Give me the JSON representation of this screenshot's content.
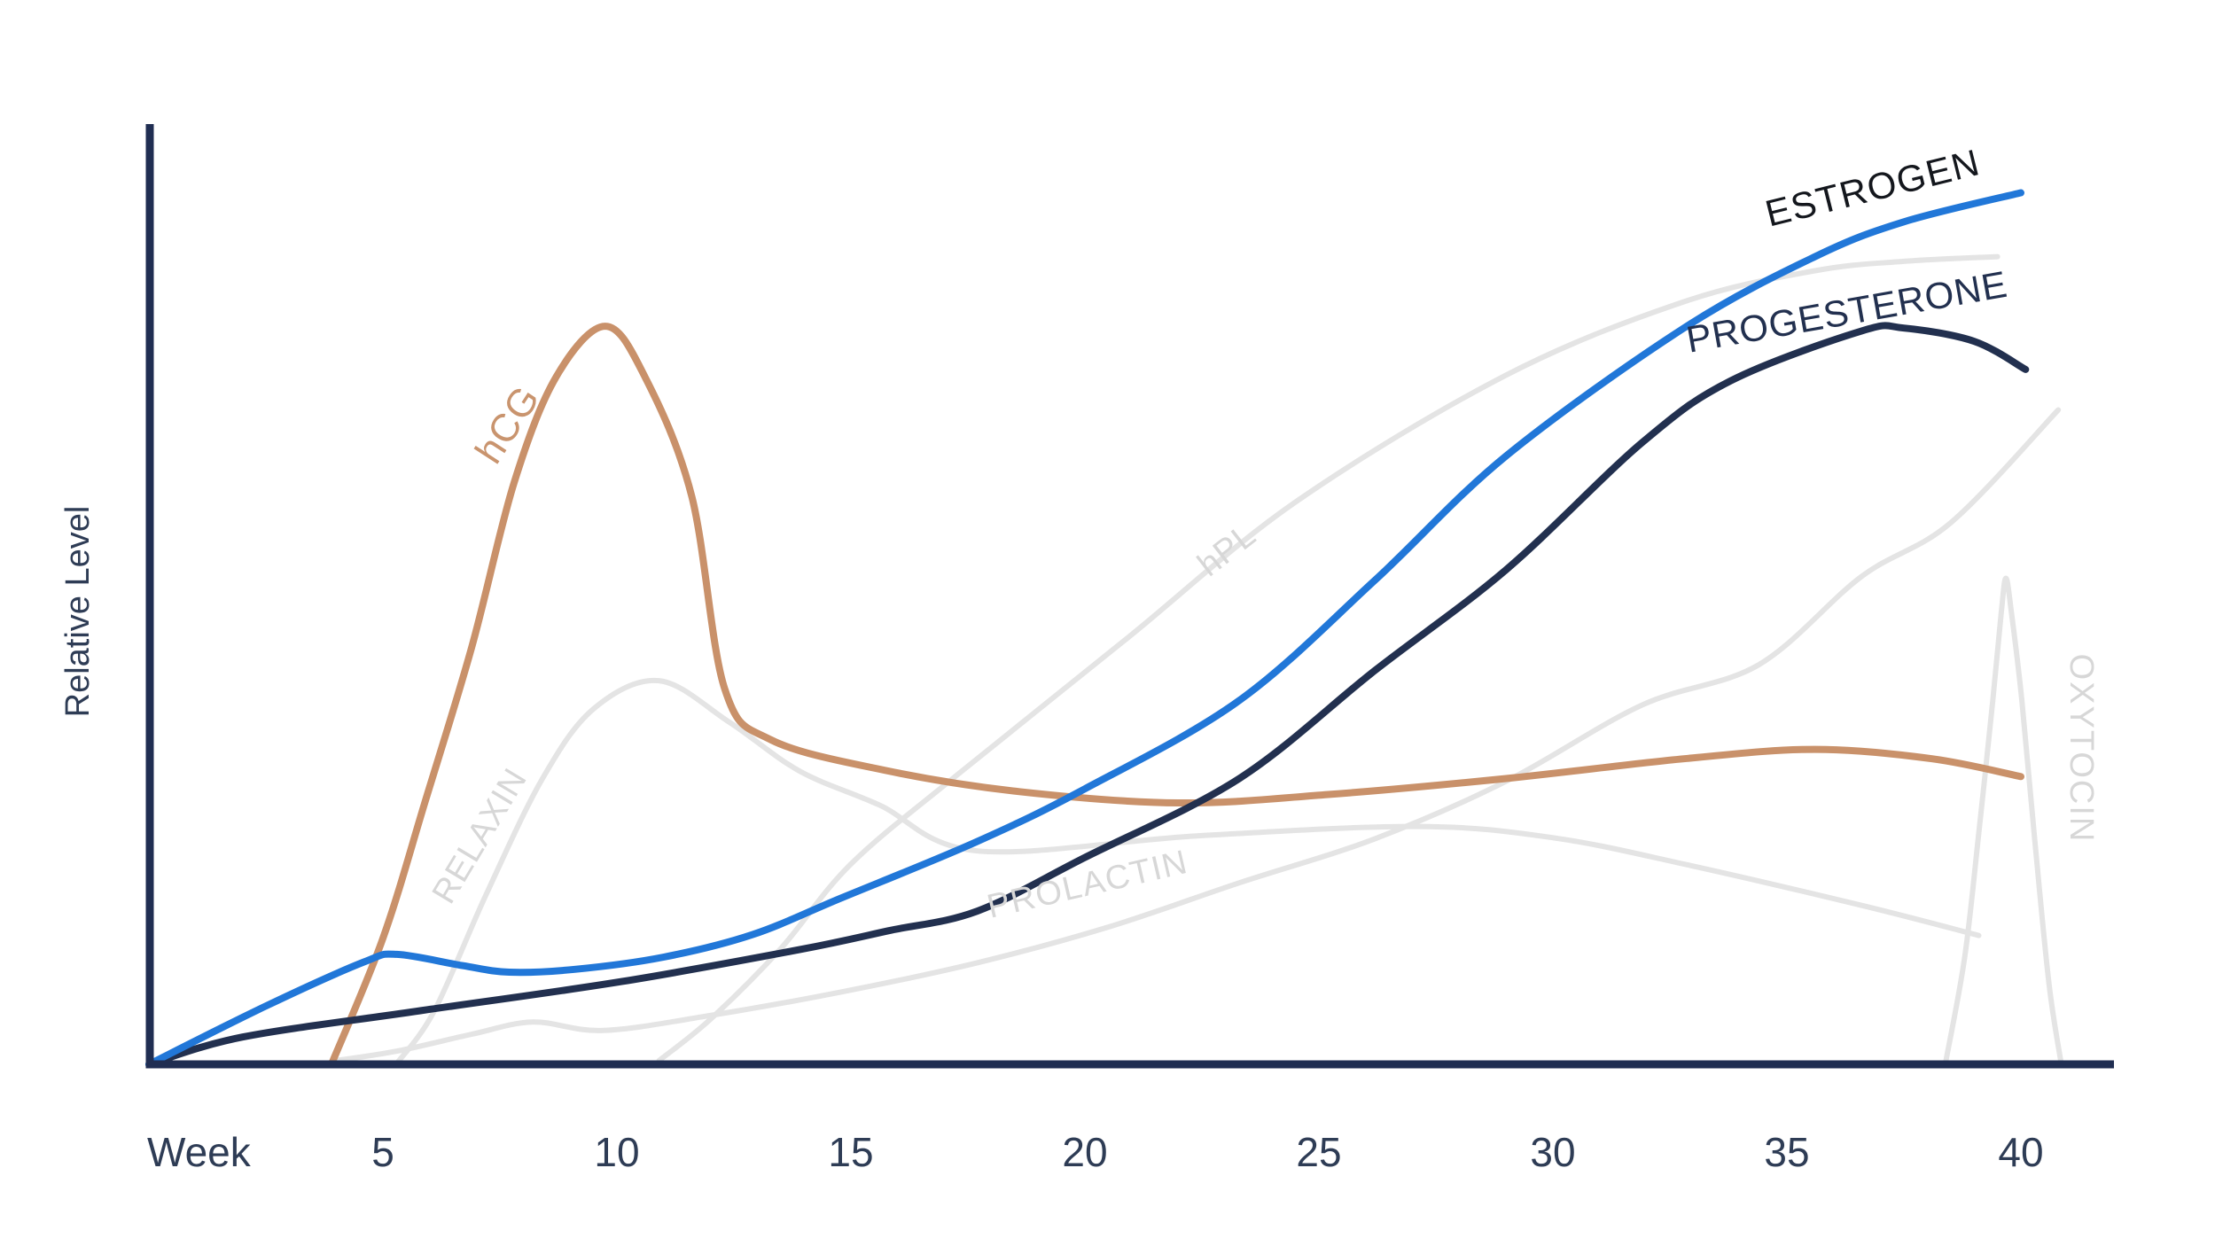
{
  "figure": {
    "background": "#ffffff",
    "axis_color": "#202e52",
    "text_color": "#2e3c55",
    "gray_curve_color": "#e4e4e4",
    "gray_label_color": "#d7d7d7"
  },
  "axes": {
    "y_label": "Relative Level",
    "x_label": "Week",
    "x_ticks": [
      {
        "week": 5,
        "label": "5"
      },
      {
        "week": 10,
        "label": "10"
      },
      {
        "week": 15,
        "label": "15"
      },
      {
        "week": 20,
        "label": "20"
      },
      {
        "week": 25,
        "label": "25"
      },
      {
        "week": 30,
        "label": "30"
      },
      {
        "week": 35,
        "label": "35"
      },
      {
        "week": 40,
        "label": "40"
      }
    ]
  },
  "chart_data": {
    "type": "line",
    "title": "",
    "xlabel": "Week",
    "ylabel": "Relative Level",
    "x_range": [
      0,
      42
    ],
    "y_range": [
      0,
      1
    ],
    "grid": false,
    "legend_position": "inline-curve-labels",
    "series": [
      {
        "name": "relaxin",
        "label": "RELAXIN",
        "color": "#e4e4e4",
        "stroke_width": 6,
        "label_pos": {
          "week": 7.27,
          "level": 0.237,
          "rotate": -59,
          "font_size": 38,
          "letter_spacing": 1,
          "color": "#d7d7d7"
        },
        "points": [
          [
            5.3,
            0.001
          ],
          [
            6.1,
            0.057
          ],
          [
            7.2,
            0.18
          ],
          [
            8.4,
            0.303
          ],
          [
            9.5,
            0.378
          ],
          [
            10.9,
            0.408
          ],
          [
            12.4,
            0.364
          ],
          [
            13.9,
            0.312
          ],
          [
            15.6,
            0.276
          ],
          [
            17.7,
            0.227
          ],
          [
            22.4,
            0.243
          ],
          [
            27.1,
            0.253
          ],
          [
            30,
            0.241
          ],
          [
            32.8,
            0.213
          ],
          [
            36.6,
            0.169
          ],
          [
            39.1,
            0.137
          ]
        ]
      },
      {
        "name": "hpl",
        "label": "hPL",
        "color": "#e4e4e4",
        "stroke_width": 6,
        "label_pos": {
          "week": 23.18,
          "level": 0.538,
          "rotate": -38,
          "font_size": 38,
          "letter_spacing": 1,
          "color": "#d7d7d7"
        },
        "points": [
          [
            10.9,
            0.004
          ],
          [
            12,
            0.048
          ],
          [
            13.5,
            0.123
          ],
          [
            15,
            0.213
          ],
          [
            17.3,
            0.309
          ],
          [
            20.9,
            0.453
          ],
          [
            24.5,
            0.598
          ],
          [
            29,
            0.733
          ],
          [
            32.8,
            0.811
          ],
          [
            35.6,
            0.844
          ],
          [
            37.5,
            0.854
          ],
          [
            39.5,
            0.859
          ]
        ]
      },
      {
        "name": "prolactin",
        "label": "PROLACTIN",
        "color": "#e4e4e4",
        "stroke_width": 6,
        "label_pos": {
          "week": 20.11,
          "level": 0.18,
          "rotate": -13,
          "font_size": 38,
          "letter_spacing": 1.5,
          "color": "#d7d7d7"
        },
        "points": [
          [
            4,
            0.004
          ],
          [
            5.3,
            0.014
          ],
          [
            6.9,
            0.032
          ],
          [
            8.2,
            0.045
          ],
          [
            9.7,
            0.036
          ],
          [
            12,
            0.052
          ],
          [
            14.8,
            0.077
          ],
          [
            17.7,
            0.108
          ],
          [
            20.5,
            0.146
          ],
          [
            23.3,
            0.193
          ],
          [
            26.2,
            0.24
          ],
          [
            29,
            0.301
          ],
          [
            31.9,
            0.382
          ],
          [
            34.4,
            0.425
          ],
          [
            36.6,
            0.519
          ],
          [
            38.5,
            0.576
          ],
          [
            40.8,
            0.696
          ]
        ]
      },
      {
        "name": "oxytocin",
        "label": "OXYTOCIN",
        "color": "#e4e4e4",
        "stroke_width": 6,
        "label_pos": {
          "week": 41.06,
          "level": 0.336,
          "rotate": 90,
          "font_size": 38,
          "letter_spacing": 2,
          "color": "#d7d7d7"
        },
        "points": [
          [
            38.4,
            0.004
          ],
          [
            38.8,
            0.114
          ],
          [
            39.1,
            0.246
          ],
          [
            39.4,
            0.387
          ],
          [
            39.58,
            0.48
          ],
          [
            39.68,
            0.517
          ],
          [
            39.8,
            0.48
          ],
          [
            40.02,
            0.387
          ],
          [
            40.3,
            0.237
          ],
          [
            40.6,
            0.086
          ],
          [
            40.85,
            0.004
          ]
        ]
      },
      {
        "name": "hcg",
        "label": "hCG",
        "color": "#c9916a",
        "stroke_width": 8,
        "label_pos": {
          "week": 7.9,
          "level": 0.673,
          "rotate": -57,
          "font_size": 44,
          "letter_spacing": 1,
          "color": "#c9946e"
        },
        "points": [
          [
            3.9,
            0
          ],
          [
            5,
            0.134
          ],
          [
            5.9,
            0.279
          ],
          [
            6.9,
            0.444
          ],
          [
            7.8,
            0.618
          ],
          [
            8.7,
            0.731
          ],
          [
            9.75,
            0.785
          ],
          [
            10.6,
            0.731
          ],
          [
            11.6,
            0.604
          ],
          [
            12.3,
            0.4
          ],
          [
            13.3,
            0.345
          ],
          [
            15.8,
            0.312
          ],
          [
            18.6,
            0.29
          ],
          [
            22,
            0.278
          ],
          [
            25.2,
            0.287
          ],
          [
            29,
            0.304
          ],
          [
            32.8,
            0.325
          ],
          [
            35.6,
            0.335
          ],
          [
            38.1,
            0.325
          ],
          [
            40,
            0.306
          ]
        ]
      },
      {
        "name": "progesterone",
        "label": "PROGESTERONE",
        "color": "#22304f",
        "stroke_width": 8,
        "label_pos": {
          "week": 36.33,
          "level": 0.787,
          "rotate": -10,
          "font_size": 42,
          "letter_spacing": 1,
          "color": "#22304f"
        },
        "points": [
          [
            0,
            0
          ],
          [
            2,
            0.029
          ],
          [
            5.8,
            0.057
          ],
          [
            10.1,
            0.088
          ],
          [
            13.9,
            0.122
          ],
          [
            15.8,
            0.142
          ],
          [
            17.7,
            0.163
          ],
          [
            20,
            0.22
          ],
          [
            23.3,
            0.304
          ],
          [
            26.2,
            0.419
          ],
          [
            29,
            0.526
          ],
          [
            31.9,
            0.661
          ],
          [
            33.8,
            0.727
          ],
          [
            36.6,
            0.78
          ],
          [
            37.5,
            0.783
          ],
          [
            39,
            0.769
          ],
          [
            40.1,
            0.739
          ]
        ]
      },
      {
        "name": "estrogen",
        "label": "ESTROGEN",
        "color": "#2177d8",
        "stroke_width": 8,
        "label_pos": {
          "week": 36.9,
          "level": 0.919,
          "rotate": -14,
          "font_size": 42,
          "letter_spacing": 1.5,
          "color": "#14171d"
        },
        "points": [
          [
            0,
            0
          ],
          [
            2.5,
            0.062
          ],
          [
            4.6,
            0.109
          ],
          [
            5.3,
            0.117
          ],
          [
            6.7,
            0.105
          ],
          [
            7.7,
            0.098
          ],
          [
            9.1,
            0.101
          ],
          [
            11,
            0.114
          ],
          [
            12.9,
            0.138
          ],
          [
            14.8,
            0.177
          ],
          [
            17.7,
            0.237
          ],
          [
            20,
            0.293
          ],
          [
            23.3,
            0.387
          ],
          [
            26.2,
            0.515
          ],
          [
            29,
            0.647
          ],
          [
            32.8,
            0.783
          ],
          [
            35.6,
            0.859
          ],
          [
            37.5,
            0.896
          ],
          [
            40,
            0.927
          ]
        ]
      }
    ]
  }
}
